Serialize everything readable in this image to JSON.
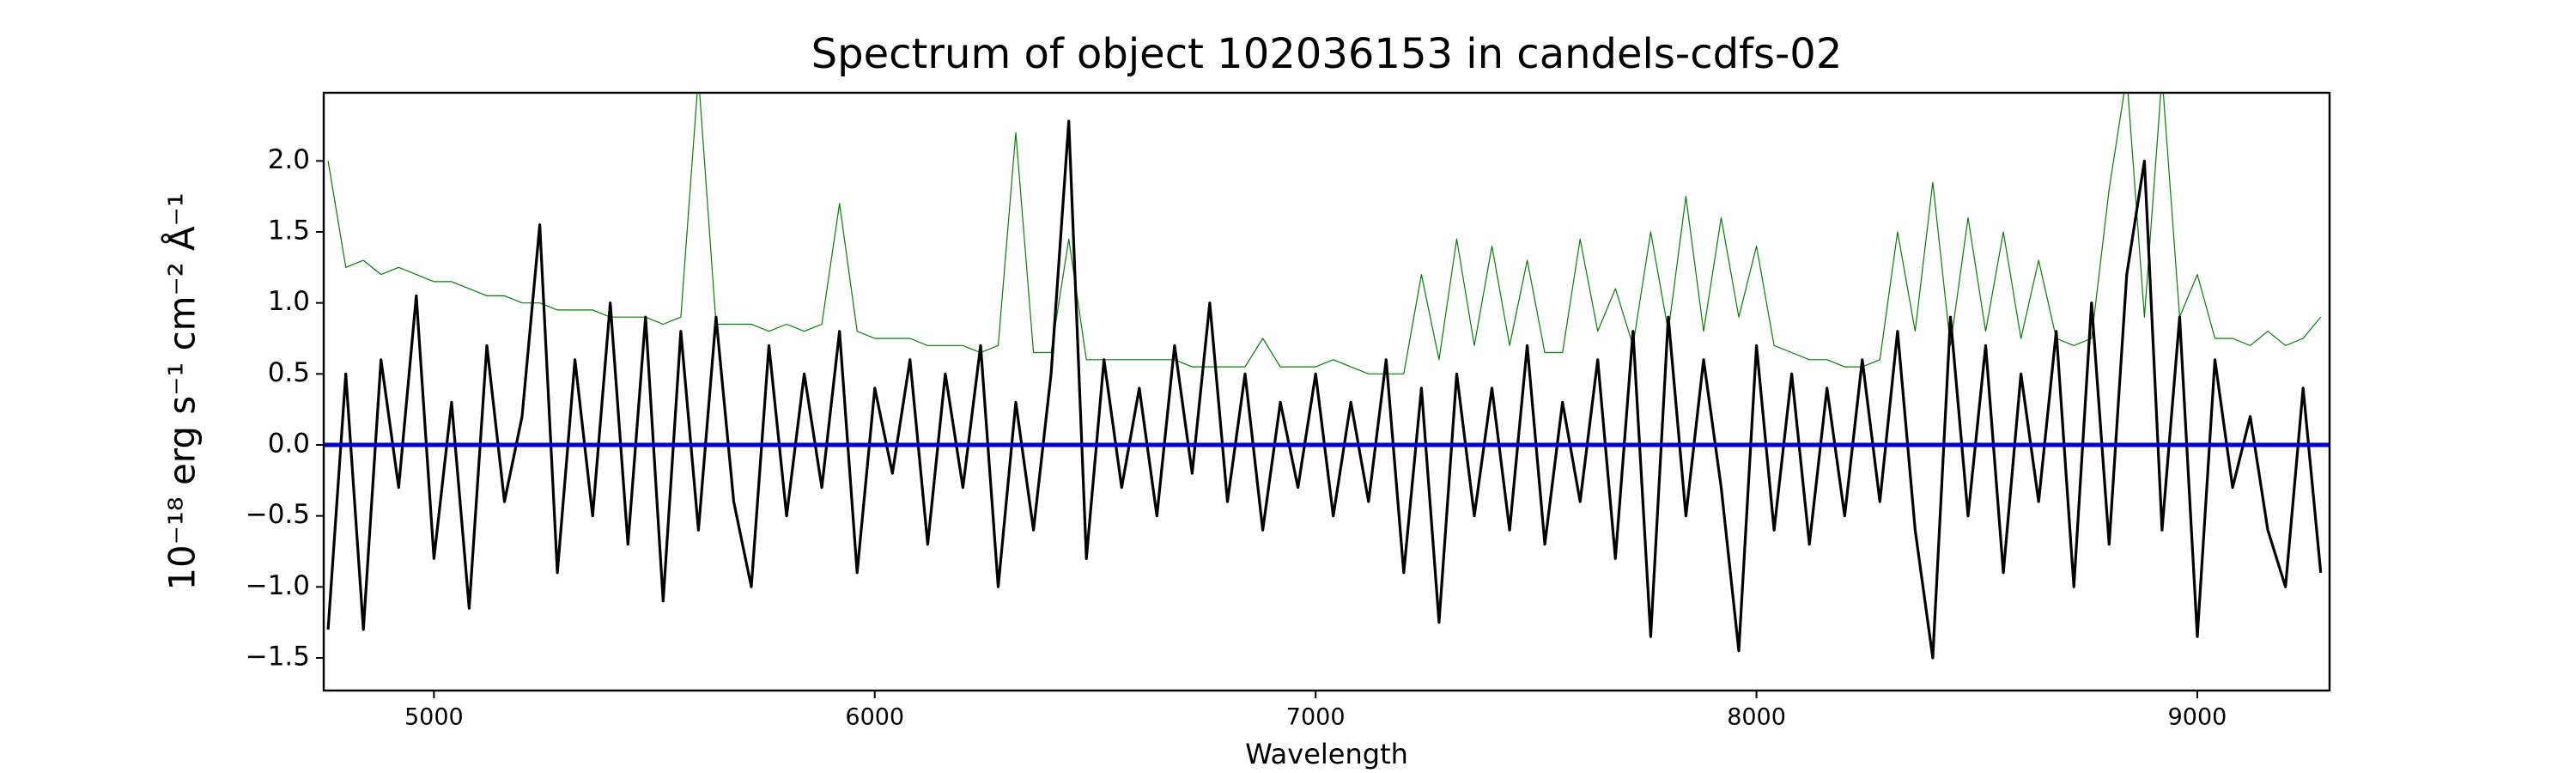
{
  "chart_data": {
    "type": "line",
    "title": "Spectrum of object 102036153 in candels-cdfs-02",
    "xlabel": "Wavelength",
    "ylabel": "10⁻¹⁸ erg s⁻¹ cm⁻² Å⁻¹",
    "x": [
      4760,
      4800,
      4840,
      4880,
      4920,
      4960,
      5000,
      5040,
      5080,
      5120,
      5160,
      5200,
      5240,
      5280,
      5320,
      5360,
      5400,
      5440,
      5480,
      5520,
      5560,
      5600,
      5640,
      5680,
      5720,
      5760,
      5800,
      5840,
      5880,
      5920,
      5960,
      6000,
      6040,
      6080,
      6120,
      6160,
      6200,
      6240,
      6280,
      6320,
      6360,
      6400,
      6440,
      6480,
      6520,
      6560,
      6600,
      6640,
      6680,
      6720,
      6760,
      6800,
      6840,
      6880,
      6920,
      6960,
      7000,
      7040,
      7080,
      7120,
      7160,
      7200,
      7240,
      7280,
      7320,
      7360,
      7400,
      7440,
      7480,
      7520,
      7560,
      7600,
      7640,
      7680,
      7720,
      7760,
      7800,
      7840,
      7880,
      7920,
      7960,
      8000,
      8040,
      8080,
      8120,
      8160,
      8200,
      8240,
      8280,
      8320,
      8360,
      8400,
      8440,
      8480,
      8520,
      8560,
      8600,
      8640,
      8680,
      8720,
      8760,
      8800,
      8840,
      8880,
      8920,
      8960,
      9000,
      9040,
      9080,
      9120,
      9160,
      9200,
      9240,
      9280
    ],
    "series": [
      {
        "color": "#008000",
        "width": 1.2,
        "values": [
          2.0,
          1.25,
          1.3,
          1.2,
          1.25,
          1.2,
          1.15,
          1.15,
          1.1,
          1.05,
          1.05,
          1.0,
          1.0,
          0.95,
          0.95,
          0.95,
          0.9,
          0.9,
          0.9,
          0.85,
          0.9,
          2.6,
          0.85,
          0.85,
          0.85,
          0.8,
          0.85,
          0.8,
          0.85,
          1.7,
          0.8,
          0.75,
          0.75,
          0.75,
          0.7,
          0.7,
          0.7,
          0.65,
          0.7,
          2.2,
          0.65,
          0.65,
          1.45,
          0.6,
          0.6,
          0.6,
          0.6,
          0.6,
          0.6,
          0.55,
          0.55,
          0.55,
          0.55,
          0.75,
          0.55,
          0.55,
          0.55,
          0.6,
          0.55,
          0.5,
          0.5,
          0.5,
          1.2,
          0.6,
          1.45,
          0.7,
          1.4,
          0.7,
          1.3,
          0.65,
          0.65,
          1.45,
          0.8,
          1.1,
          0.7,
          1.5,
          0.8,
          1.75,
          0.8,
          1.6,
          0.9,
          1.4,
          0.7,
          0.65,
          0.6,
          0.6,
          0.55,
          0.55,
          0.6,
          1.5,
          0.8,
          1.85,
          0.7,
          1.6,
          0.8,
          1.5,
          0.75,
          1.3,
          0.75,
          0.7,
          0.75,
          1.8,
          2.6,
          0.9,
          2.6,
          0.9,
          1.2,
          0.75,
          0.75,
          0.7,
          0.8,
          0.7,
          0.75,
          0.9
        ]
      },
      {
        "color": "#000000",
        "width": 3.2,
        "values": [
          -1.3,
          0.5,
          -1.3,
          0.6,
          -0.3,
          1.05,
          -0.8,
          0.3,
          -1.15,
          0.7,
          -0.4,
          0.2,
          1.55,
          -0.9,
          0.6,
          -0.5,
          1.0,
          -0.7,
          0.9,
          -1.1,
          0.8,
          -0.6,
          0.9,
          -0.4,
          -1.0,
          0.7,
          -0.5,
          0.5,
          -0.3,
          0.8,
          -0.9,
          0.4,
          -0.2,
          0.6,
          -0.7,
          0.5,
          -0.3,
          0.7,
          -1.0,
          0.3,
          -0.6,
          0.5,
          2.28,
          -0.8,
          0.6,
          -0.3,
          0.4,
          -0.5,
          0.7,
          -0.2,
          1.0,
          -0.4,
          0.5,
          -0.6,
          0.3,
          -0.3,
          0.5,
          -0.5,
          0.3,
          -0.4,
          0.6,
          -0.9,
          0.4,
          -1.25,
          0.5,
          -0.5,
          0.4,
          -0.6,
          0.7,
          -0.7,
          0.3,
          -0.4,
          0.6,
          -0.8,
          0.8,
          -1.35,
          0.9,
          -0.5,
          0.6,
          -0.3,
          -1.45,
          0.7,
          -0.6,
          0.5,
          -0.7,
          0.4,
          -0.5,
          0.6,
          -0.4,
          0.8,
          -0.6,
          -1.5,
          0.9,
          -0.5,
          0.7,
          -0.9,
          0.5,
          -0.4,
          0.8,
          -1.0,
          1.0,
          -0.7,
          1.2,
          2.0,
          -0.6,
          0.9,
          -1.35,
          0.6,
          -0.3,
          0.2,
          -0.6,
          -1.0,
          0.4,
          -0.9
        ]
      },
      {
        "color": "#0000cc",
        "width": 5,
        "x": [
          4750,
          9300
        ],
        "values": [
          0,
          0
        ]
      }
    ],
    "xlim": [
      4750,
      9300
    ],
    "ylim": [
      -1.73,
      2.48
    ],
    "xticks": [
      5000,
      6000,
      7000,
      8000,
      9000
    ],
    "yticks": [
      {
        "value": -1.5,
        "label": "−1.5"
      },
      {
        "value": -1,
        "label": "−1.0"
      },
      {
        "value": -0.5,
        "label": "−0.5"
      },
      {
        "value": 0,
        "label": "0.0"
      },
      0.5,
      {
        "value": 1,
        "label": "1.0"
      },
      1.5,
      {
        "value": 2,
        "label": "2.0"
      }
    ],
    "grid": false
  }
}
